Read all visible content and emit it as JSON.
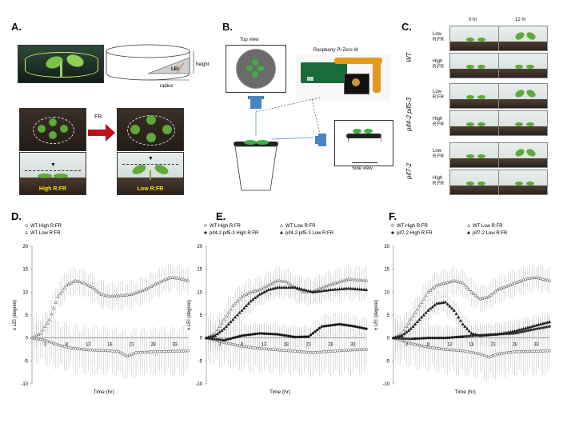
{
  "panels": {
    "A": {
      "letter": "A.",
      "lei_label": "LEI",
      "height_label": "height",
      "radius_label": "radius",
      "fr_label": "FR",
      "high_label": "High R:FR",
      "low_label": "Low R:FR"
    },
    "B": {
      "letter": "B.",
      "top_view": "Top view",
      "side_view": "Side view",
      "device": "Raspberry Pi Zero W"
    },
    "C": {
      "letter": "C.",
      "col0": "0 hr",
      "col12": "12 hr",
      "groups": [
        {
          "genotype": "WT",
          "rows": [
            "Low R:FR",
            "High R:FR"
          ]
        },
        {
          "genotype": "pif4-2 pif5-3",
          "rows": [
            "Low R:FR",
            "High R:FR"
          ]
        },
        {
          "genotype": "pif7-2",
          "rows": [
            "Low R:FR",
            "High R:FR"
          ]
        }
      ]
    }
  },
  "chart_data": [
    {
      "type": "scatter",
      "panel": "D.",
      "xlabel": "Time (hr)",
      "ylabel": "± LEI (degree)",
      "xticks": [
        "3",
        "8",
        "13",
        "18",
        "23",
        "28",
        "33"
      ],
      "yticks": [
        "-10",
        "-5",
        "0",
        "5",
        "10",
        "15",
        "20"
      ],
      "ylim": [
        -10,
        20
      ],
      "xlim": [
        0,
        36
      ],
      "series": [
        {
          "name": "WT High R:FR",
          "marker": "open-circle",
          "anchors": [
            [
              0,
              0
            ],
            [
              3,
              -0.5
            ],
            [
              6,
              -1.5
            ],
            [
              9,
              -2.2
            ],
            [
              13,
              -2.6
            ],
            [
              18,
              -2.8
            ],
            [
              20,
              -3
            ],
            [
              22,
              -4
            ],
            [
              24,
              -3.2
            ],
            [
              28,
              -3
            ],
            [
              33,
              -2.9
            ],
            [
              36,
              -2.8
            ]
          ]
        },
        {
          "name": "WT Low R:FR",
          "marker": "open-triangle",
          "anchors": [
            [
              0,
              0
            ],
            [
              2,
              1
            ],
            [
              4,
              4
            ],
            [
              6,
              9
            ],
            [
              8,
              11.5
            ],
            [
              10,
              12.5
            ],
            [
              12,
              12
            ],
            [
              14,
              11
            ],
            [
              16,
              9.5
            ],
            [
              18,
              9.1
            ],
            [
              20,
              9.2
            ],
            [
              23,
              9.5
            ],
            [
              26,
              10.5
            ],
            [
              29,
              12
            ],
            [
              32,
              13.2
            ],
            [
              34,
              13
            ],
            [
              36,
              12.5
            ]
          ]
        }
      ]
    },
    {
      "type": "scatter",
      "panel": "E.",
      "xlabel": "Time (hr)",
      "ylabel": "± LEI (degree)",
      "xticks": [
        "3",
        "8",
        "13",
        "18",
        "23",
        "28",
        "33"
      ],
      "yticks": [
        "-10",
        "-5",
        "0",
        "5",
        "10",
        "15",
        "20"
      ],
      "ylim": [
        -10,
        20
      ],
      "xlim": [
        0,
        36
      ],
      "series": [
        {
          "name": "WT High R:FR",
          "marker": "open-circle",
          "anchors": [
            [
              0,
              0
            ],
            [
              4,
              -1
            ],
            [
              8,
              -1.8
            ],
            [
              12,
              -2.3
            ],
            [
              16,
              -2.6
            ],
            [
              20,
              -2.9
            ],
            [
              24,
              -3.2
            ],
            [
              28,
              -2.9
            ],
            [
              33,
              -2.6
            ],
            [
              36,
              -2.5
            ]
          ]
        },
        {
          "name": "WT Low R:FR",
          "marker": "open-triangle",
          "anchors": [
            [
              0,
              0
            ],
            [
              2,
              1
            ],
            [
              4,
              4
            ],
            [
              6,
              7
            ],
            [
              8,
              9
            ],
            [
              10,
              10
            ],
            [
              12,
              10.5
            ],
            [
              14,
              11.5
            ],
            [
              16,
              12.5
            ],
            [
              18,
              12.3
            ],
            [
              20,
              11
            ],
            [
              22,
              10
            ],
            [
              24,
              10.2
            ],
            [
              26,
              11
            ],
            [
              29,
              12
            ],
            [
              32,
              12.8
            ],
            [
              36,
              12.5
            ]
          ]
        },
        {
          "name": "pif4-2 pif5-3 High R:FR",
          "marker": "filled-circle",
          "anchors": [
            [
              0,
              0
            ],
            [
              4,
              -0.5
            ],
            [
              8,
              0.5
            ],
            [
              12,
              1
            ],
            [
              16,
              0.8
            ],
            [
              20,
              0.2
            ],
            [
              23,
              0.3
            ],
            [
              26,
              2.5
            ],
            [
              30,
              3
            ],
            [
              33,
              2.6
            ],
            [
              36,
              2
            ]
          ]
        },
        {
          "name": "pif4-2 pif5-3 Low R:FR",
          "marker": "filled-triangle",
          "anchors": [
            [
              0,
              0
            ],
            [
              2,
              0.5
            ],
            [
              4,
              2
            ],
            [
              6,
              4
            ],
            [
              8,
              6
            ],
            [
              10,
              8
            ],
            [
              12,
              9.5
            ],
            [
              14,
              10.5
            ],
            [
              16,
              11
            ],
            [
              20,
              11
            ],
            [
              24,
              10
            ],
            [
              28,
              10.5
            ],
            [
              32,
              10.8
            ],
            [
              36,
              10.5
            ]
          ]
        }
      ]
    },
    {
      "type": "scatter",
      "panel": "F.",
      "xlabel": "Time (hr)",
      "ylabel": "± LEI (degree)",
      "xticks": [
        "3",
        "8",
        "13",
        "18",
        "23",
        "28",
        "33"
      ],
      "yticks": [
        "-10",
        "-5",
        "0",
        "5",
        "10",
        "15",
        "20"
      ],
      "ylim": [
        -10,
        20
      ],
      "xlim": [
        0,
        36
      ],
      "series": [
        {
          "name": "WT High R:FR",
          "marker": "open-circle",
          "anchors": [
            [
              0,
              0
            ],
            [
              4,
              -1.2
            ],
            [
              8,
              -2
            ],
            [
              12,
              -2.5
            ],
            [
              16,
              -2.8
            ],
            [
              20,
              -3.5
            ],
            [
              22,
              -4.2
            ],
            [
              24,
              -3.5
            ],
            [
              28,
              -3
            ],
            [
              33,
              -2.9
            ],
            [
              36,
              -2.8
            ]
          ]
        },
        {
          "name": "WT Low R:FR",
          "marker": "open-triangle",
          "anchors": [
            [
              0,
              0
            ],
            [
              2,
              1
            ],
            [
              4,
              4
            ],
            [
              6,
              7
            ],
            [
              8,
              10
            ],
            [
              10,
              11.5
            ],
            [
              12,
              12
            ],
            [
              14,
              12.5
            ],
            [
              16,
              12
            ],
            [
              18,
              10
            ],
            [
              20,
              8.5
            ],
            [
              22,
              9
            ],
            [
              24,
              10.5
            ],
            [
              28,
              12
            ],
            [
              31,
              13
            ],
            [
              33,
              13.2
            ],
            [
              36,
              12.5
            ]
          ]
        },
        {
          "name": "pif7-2 High R:FR",
          "marker": "filled-circle",
          "anchors": [
            [
              0,
              0
            ],
            [
              4,
              -0.2
            ],
            [
              8,
              0
            ],
            [
              12,
              0
            ],
            [
              16,
              0.3
            ],
            [
              20,
              0.6
            ],
            [
              24,
              0.8
            ],
            [
              28,
              1
            ],
            [
              32,
              1.8
            ],
            [
              36,
              2.5
            ]
          ]
        },
        {
          "name": "pif7-2 Low R:FR",
          "marker": "filled-triangle",
          "anchors": [
            [
              0,
              0
            ],
            [
              2,
              0.5
            ],
            [
              4,
              2
            ],
            [
              6,
              4
            ],
            [
              8,
              6
            ],
            [
              10,
              7.5
            ],
            [
              12,
              7.8
            ],
            [
              14,
              6
            ],
            [
              16,
              3
            ],
            [
              18,
              1
            ],
            [
              20,
              0.5
            ],
            [
              24,
              0.8
            ],
            [
              28,
              1.5
            ],
            [
              32,
              2.5
            ],
            [
              36,
              3.5
            ]
          ]
        }
      ]
    }
  ]
}
